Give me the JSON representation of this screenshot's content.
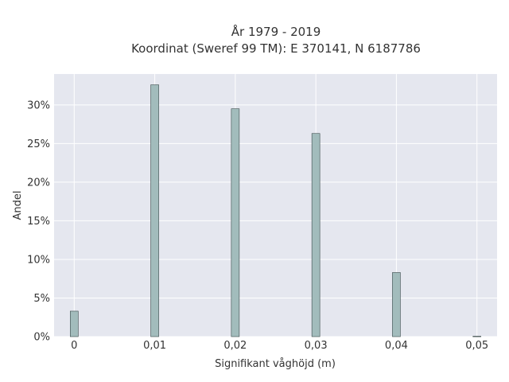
{
  "chart_data": {
    "type": "bar",
    "title_lines": [
      "År 1979 - 2019",
      "Koordinat (Sweref 99 TM): E 370141, N 6187786"
    ],
    "xlabel": "Signifikant våghöjd (m)",
    "ylabel": "Andel",
    "x_ticks": [
      "0",
      "0,01",
      "0,02",
      "0,03",
      "0,04",
      "0,05"
    ],
    "y_ticks": [
      "0%",
      "5%",
      "10%",
      "15%",
      "20%",
      "25%",
      "30%"
    ],
    "xlim": [
      -0.0025,
      0.0525
    ],
    "ylim": [
      0,
      34.0
    ],
    "x": [
      0.0,
      0.01,
      0.02,
      0.03,
      0.04,
      0.05
    ],
    "values": [
      3.3,
      32.6,
      29.5,
      26.3,
      8.3,
      0.05
    ],
    "grid": true,
    "colors": {
      "plot_bg": "#e5e7ef",
      "grid": "#ffffff",
      "bar_fill": "#a2bcbc",
      "bar_stroke": "#3a4a4a",
      "text": "#333333"
    }
  }
}
